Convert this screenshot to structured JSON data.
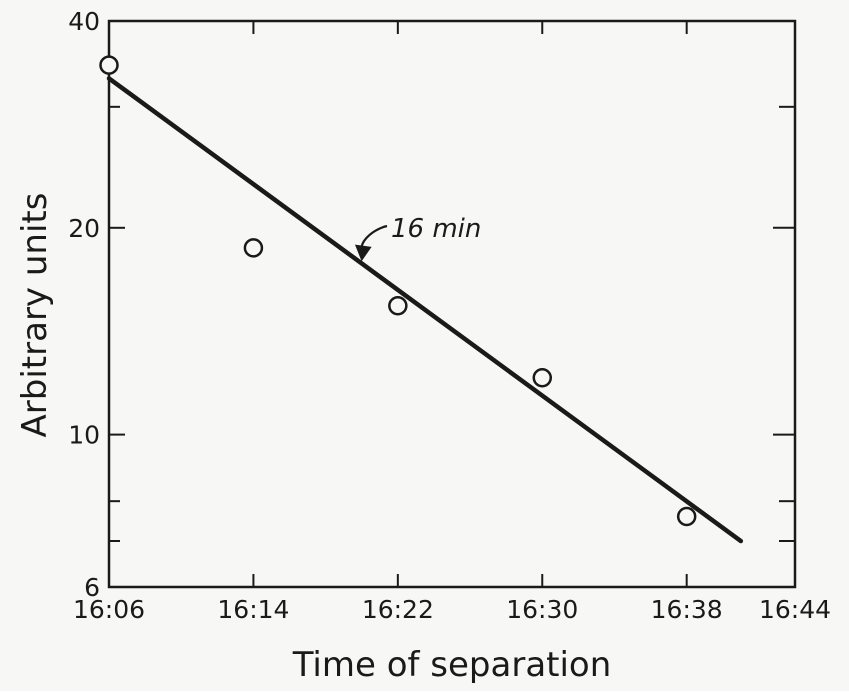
{
  "chart_data": {
    "type": "scatter",
    "title": "",
    "xlabel": "Time of separation",
    "ylabel": "Arbitrary units",
    "y_scale": "log",
    "xlim": [
      "16:06",
      "16:44"
    ],
    "ylim": [
      6,
      40
    ],
    "x_ticks": [
      "16:06",
      "16:14",
      "16:22",
      "16:30",
      "16:38",
      "16:44"
    ],
    "y_tick_labels": [
      "6",
      "10",
      "20",
      "40"
    ],
    "y_minor_ticks": [
      7,
      8,
      30
    ],
    "grid": false,
    "legend": "none",
    "points": [
      {
        "x": "16:06",
        "y": 34.5
      },
      {
        "x": "16:14",
        "y": 18.7
      },
      {
        "x": "16:22",
        "y": 15.4
      },
      {
        "x": "16:30",
        "y": 12.1
      },
      {
        "x": "16:38",
        "y": 7.6
      }
    ],
    "fit_line": {
      "from": {
        "x": "16:06",
        "y": 33.0
      },
      "to": {
        "x": "16:41",
        "y": 7.0
      }
    },
    "annotation": {
      "text": "16 min",
      "target": {
        "x": "16:20",
        "y": 18.0
      }
    },
    "colors": {
      "ink": "#1a1a1a",
      "background": "#f7f7f5"
    }
  }
}
